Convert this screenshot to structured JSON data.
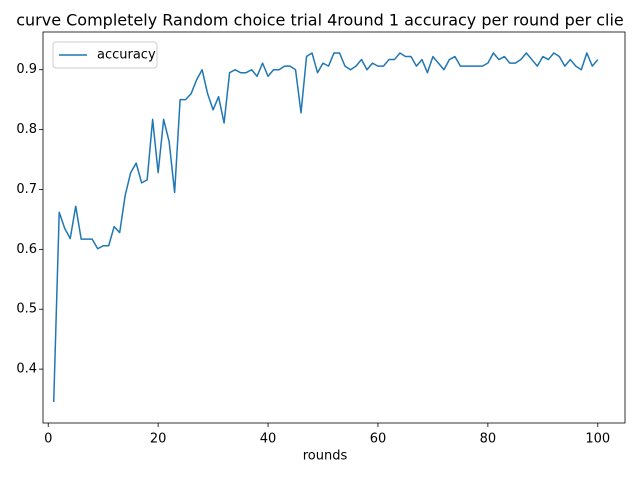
{
  "chart_data": {
    "type": "line",
    "title": "curve Completely Random choice trial 4round 1 accuracy per round per clie",
    "x_label": "rounds",
    "x": [
      1,
      2,
      3,
      4,
      5,
      6,
      7,
      8,
      9,
      10,
      11,
      12,
      13,
      14,
      15,
      16,
      17,
      18,
      19,
      20,
      21,
      22,
      23,
      24,
      25,
      26,
      27,
      28,
      29,
      30,
      31,
      32,
      33,
      34,
      35,
      36,
      37,
      38,
      39,
      40,
      41,
      42,
      43,
      44,
      45,
      46,
      47,
      48,
      49,
      50,
      51,
      52,
      53,
      54,
      55,
      56,
      57,
      58,
      59,
      60,
      61,
      62,
      63,
      64,
      65,
      66,
      67,
      68,
      69,
      70,
      71,
      72,
      73,
      74,
      75,
      76,
      77,
      78,
      79,
      80,
      81,
      82,
      83,
      84,
      85,
      86,
      87,
      88,
      89,
      90,
      91,
      92,
      93,
      94,
      95,
      96,
      97,
      98,
      99,
      100
    ],
    "series": [
      {
        "name": "accuracy",
        "color": "#1f77b4",
        "values": [
          0.345,
          0.662,
          0.635,
          0.618,
          0.672,
          0.617,
          0.617,
          0.617,
          0.601,
          0.606,
          0.606,
          0.638,
          0.628,
          0.69,
          0.728,
          0.744,
          0.711,
          0.716,
          0.817,
          0.728,
          0.817,
          0.78,
          0.695,
          0.85,
          0.85,
          0.86,
          0.883,
          0.9,
          0.86,
          0.833,
          0.855,
          0.811,
          0.895,
          0.9,
          0.895,
          0.895,
          0.9,
          0.889,
          0.911,
          0.889,
          0.9,
          0.9,
          0.906,
          0.906,
          0.9,
          0.828,
          0.922,
          0.928,
          0.895,
          0.911,
          0.906,
          0.928,
          0.928,
          0.906,
          0.9,
          0.906,
          0.917,
          0.9,
          0.911,
          0.906,
          0.906,
          0.917,
          0.917,
          0.928,
          0.922,
          0.922,
          0.906,
          0.917,
          0.895,
          0.922,
          0.911,
          0.9,
          0.917,
          0.922,
          0.906,
          0.906,
          0.906,
          0.906,
          0.906,
          0.911,
          0.928,
          0.917,
          0.922,
          0.911,
          0.911,
          0.917,
          0.928,
          0.917,
          0.906,
          0.922,
          0.917,
          0.928,
          0.922,
          0.906,
          0.917,
          0.906,
          0.9,
          0.928,
          0.906,
          0.917
        ]
      }
    ],
    "xlim": [
      -0.95,
      104.95
    ],
    "ylim": [
      0.31,
      0.963
    ],
    "xticks": [
      0,
      20,
      40,
      60,
      80,
      100
    ],
    "yticks": [
      0.4,
      0.5,
      0.6,
      0.7,
      0.8,
      0.9
    ],
    "legend": "upper left"
  }
}
